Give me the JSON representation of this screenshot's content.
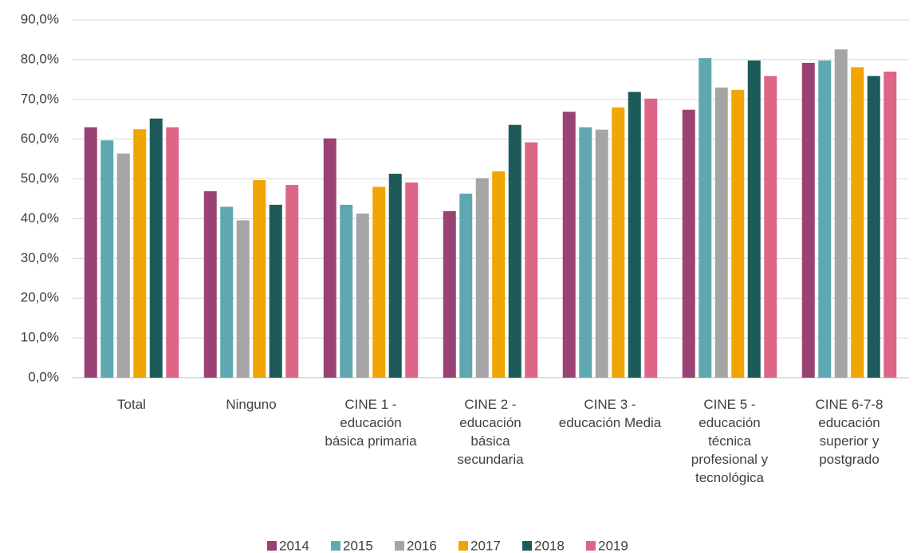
{
  "chart_data": {
    "type": "bar",
    "categories": [
      "Total",
      "Ninguno",
      "CINE 1 - educación básica primaria",
      "CINE 2 - educación básica secundaria",
      "CINE 3 - educación Media",
      "CINE 5 - educación técnica profesional y tecnológica",
      "CINE 6-7-8 educación superior y postgrado"
    ],
    "series": [
      {
        "name": "2014",
        "color": "#9b4275",
        "values": [
          63.0,
          46.9,
          60.2,
          41.9,
          66.9,
          67.4,
          79.2
        ]
      },
      {
        "name": "2015",
        "color": "#5fa8b1",
        "values": [
          59.7,
          43.0,
          43.5,
          46.3,
          63.0,
          80.4,
          79.8
        ]
      },
      {
        "name": "2016",
        "color": "#a5a5a5",
        "values": [
          56.4,
          39.6,
          41.3,
          50.2,
          62.4,
          73.0,
          82.6
        ]
      },
      {
        "name": "2017",
        "color": "#f0a500",
        "values": [
          62.5,
          49.7,
          48.0,
          51.9,
          68.0,
          72.4,
          78.1
        ]
      },
      {
        "name": "2018",
        "color": "#1d5a5a",
        "values": [
          65.2,
          43.5,
          51.3,
          63.6,
          71.9,
          79.8,
          75.9
        ]
      },
      {
        "name": "2019",
        "color": "#dd6687",
        "values": [
          63.0,
          48.5,
          49.1,
          59.2,
          70.2,
          75.9,
          77.0
        ]
      }
    ],
    "ylim": [
      0,
      90
    ],
    "yticks": [
      {
        "value": 0,
        "label": "0,0%"
      },
      {
        "value": 10,
        "label": "10,0%"
      },
      {
        "value": 20,
        "label": "20,0%"
      },
      {
        "value": 30,
        "label": "30,0%"
      },
      {
        "value": 40,
        "label": "40,0%"
      },
      {
        "value": 50,
        "label": "50,0%"
      },
      {
        "value": 60,
        "label": "60,0%"
      },
      {
        "value": 70,
        "label": "70,0%"
      },
      {
        "value": 80,
        "label": "80,0%"
      },
      {
        "value": 90,
        "label": "90,0%"
      }
    ],
    "grid": true
  }
}
